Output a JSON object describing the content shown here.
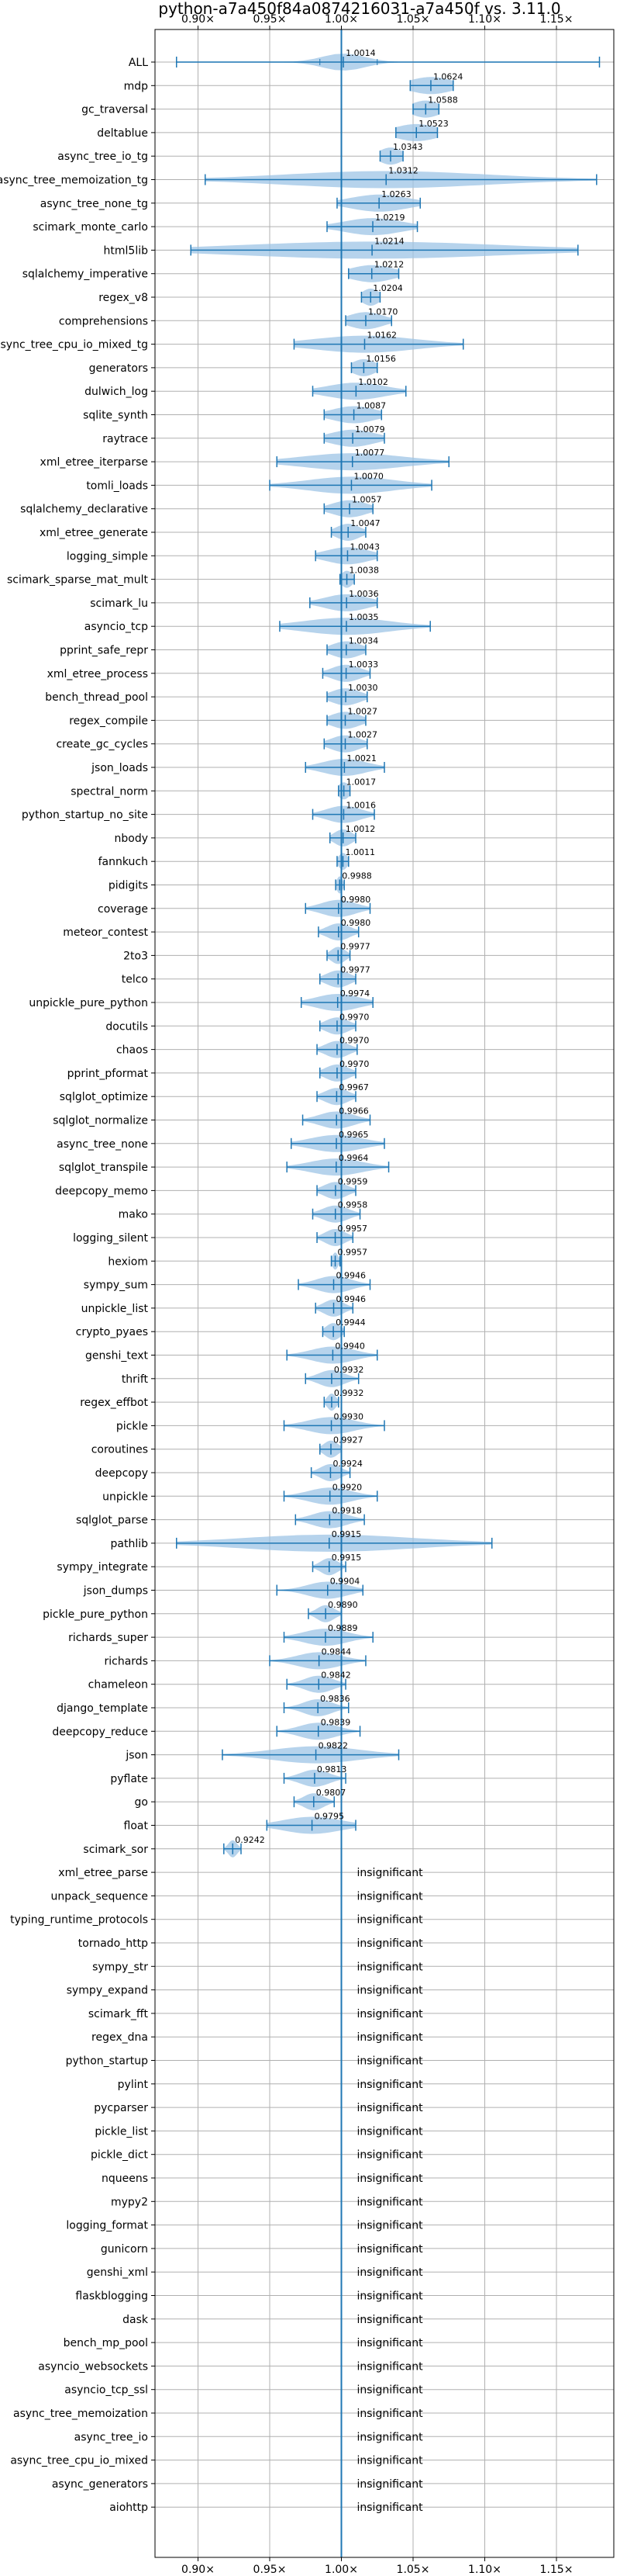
{
  "chart_data": {
    "type": "violin",
    "title": "python-a7a450f84a0874216031-a7a450f vs. 3.11.0",
    "xlim": [
      0.87,
      1.19
    ],
    "xticks": [
      {
        "value": 0.9,
        "label": "0.90×"
      },
      {
        "value": 0.95,
        "label": "0.95×"
      },
      {
        "value": 1.0,
        "label": "1.00×"
      },
      {
        "value": 1.05,
        "label": "1.05×"
      },
      {
        "value": 1.1,
        "label": "1.10×"
      },
      {
        "value": 1.15,
        "label": "1.15×"
      }
    ],
    "reference_line": 1.0,
    "grid": true,
    "insignificant_label": "insignificant",
    "benchmarks": [
      {
        "name": "ALL",
        "value": 1.0014,
        "label": "1.0014",
        "min": 0.885,
        "max": 1.18,
        "q1": 0.985,
        "q3": 1.025,
        "spread": 0.015
      },
      {
        "name": "mdp",
        "value": 1.0624,
        "label": "1.0624",
        "min": 1.048,
        "max": 1.078,
        "spread": 0.015
      },
      {
        "name": "gc_traversal",
        "value": 1.0588,
        "label": "1.0588",
        "min": 1.05,
        "max": 1.068,
        "spread": 0.01
      },
      {
        "name": "deltablue",
        "value": 1.0523,
        "label": "1.0523",
        "min": 1.038,
        "max": 1.067,
        "spread": 0.015
      },
      {
        "name": "async_tree_io_tg",
        "value": 1.0343,
        "label": "1.0343",
        "min": 1.027,
        "max": 1.043,
        "spread": 0.008
      },
      {
        "name": "async_tree_memoization_tg",
        "value": 1.0312,
        "label": "1.0312",
        "min": 0.905,
        "max": 1.178,
        "spread": 0.07
      },
      {
        "name": "async_tree_none_tg",
        "value": 1.0263,
        "label": "1.0263",
        "min": 0.997,
        "max": 1.055,
        "spread": 0.02
      },
      {
        "name": "scimark_monte_carlo",
        "value": 1.0219,
        "label": "1.0219",
        "min": 0.99,
        "max": 1.053,
        "spread": 0.02
      },
      {
        "name": "html5lib",
        "value": 1.0214,
        "label": "1.0214",
        "min": 0.895,
        "max": 1.165,
        "spread": 0.09
      },
      {
        "name": "sqlalchemy_imperative",
        "value": 1.0212,
        "label": "1.0212",
        "min": 1.005,
        "max": 1.04,
        "spread": 0.015
      },
      {
        "name": "regex_v8",
        "value": 1.0204,
        "label": "1.0204",
        "min": 1.014,
        "max": 1.027,
        "spread": 0.006
      },
      {
        "name": "comprehensions",
        "value": 1.017,
        "label": "1.0170",
        "min": 1.003,
        "max": 1.035,
        "spread": 0.012
      },
      {
        "name": "async_tree_cpu_io_mixed_tg",
        "value": 1.0162,
        "label": "1.0162",
        "min": 0.967,
        "max": 1.085,
        "spread": 0.035
      },
      {
        "name": "generators",
        "value": 1.0156,
        "label": "1.0156",
        "min": 1.007,
        "max": 1.025,
        "spread": 0.008
      },
      {
        "name": "dulwich_log",
        "value": 1.0102,
        "label": "1.0102",
        "min": 0.98,
        "max": 1.045,
        "spread": 0.02
      },
      {
        "name": "sqlite_synth",
        "value": 1.0087,
        "label": "1.0087",
        "min": 0.988,
        "max": 1.028,
        "spread": 0.015
      },
      {
        "name": "raytrace",
        "value": 1.0079,
        "label": "1.0079",
        "min": 0.988,
        "max": 1.03,
        "spread": 0.015
      },
      {
        "name": "xml_etree_iterparse",
        "value": 1.0077,
        "label": "1.0077",
        "min": 0.955,
        "max": 1.075,
        "spread": 0.035
      },
      {
        "name": "tomli_loads",
        "value": 1.007,
        "label": "1.0070",
        "min": 0.95,
        "max": 1.063,
        "spread": 0.03
      },
      {
        "name": "sqlalchemy_declarative",
        "value": 1.0057,
        "label": "1.0057",
        "min": 0.988,
        "max": 1.022,
        "spread": 0.012
      },
      {
        "name": "xml_etree_generate",
        "value": 1.0047,
        "label": "1.0047",
        "min": 0.993,
        "max": 1.017,
        "spread": 0.008
      },
      {
        "name": "logging_simple",
        "value": 1.0043,
        "label": "1.0043",
        "min": 0.982,
        "max": 1.025,
        "spread": 0.015
      },
      {
        "name": "scimark_sparse_mat_mult",
        "value": 1.0038,
        "label": "1.0038",
        "min": 0.999,
        "max": 1.009,
        "spread": 0.004
      },
      {
        "name": "scimark_lu",
        "value": 1.0036,
        "label": "1.0036",
        "min": 0.978,
        "max": 1.025,
        "spread": 0.015
      },
      {
        "name": "asyncio_tcp",
        "value": 1.0035,
        "label": "1.0035",
        "min": 0.957,
        "max": 1.062,
        "spread": 0.03
      },
      {
        "name": "pprint_safe_repr",
        "value": 1.0034,
        "label": "1.0034",
        "min": 0.99,
        "max": 1.017,
        "spread": 0.01
      },
      {
        "name": "xml_etree_process",
        "value": 1.0033,
        "label": "1.0033",
        "min": 0.987,
        "max": 1.02,
        "spread": 0.01
      },
      {
        "name": "bench_thread_pool",
        "value": 1.003,
        "label": "1.0030",
        "min": 0.99,
        "max": 1.018,
        "spread": 0.01
      },
      {
        "name": "regex_compile",
        "value": 1.0027,
        "label": "1.0027",
        "min": 0.99,
        "max": 1.017,
        "spread": 0.01
      },
      {
        "name": "create_gc_cycles",
        "value": 1.0027,
        "label": "1.0027",
        "min": 0.988,
        "max": 1.018,
        "spread": 0.01
      },
      {
        "name": "json_loads",
        "value": 1.0021,
        "label": "1.0021",
        "min": 0.975,
        "max": 1.03,
        "spread": 0.015
      },
      {
        "name": "spectral_norm",
        "value": 1.0017,
        "label": "1.0017",
        "min": 0.998,
        "max": 1.006,
        "spread": 0.004
      },
      {
        "name": "python_startup_no_site",
        "value": 1.0016,
        "label": "1.0016",
        "min": 0.98,
        "max": 1.023,
        "spread": 0.012
      },
      {
        "name": "nbody",
        "value": 1.0012,
        "label": "1.0012",
        "min": 0.992,
        "max": 1.01,
        "spread": 0.006
      },
      {
        "name": "fannkuch",
        "value": 1.0011,
        "label": "1.0011",
        "min": 0.997,
        "max": 1.005,
        "spread": 0.003
      },
      {
        "name": "pidigits",
        "value": 0.9988,
        "label": "0.9988",
        "min": 0.996,
        "max": 1.002,
        "spread": 0.002
      },
      {
        "name": "coverage",
        "value": 0.998,
        "label": "0.9980",
        "min": 0.975,
        "max": 1.02,
        "spread": 0.012
      },
      {
        "name": "meteor_contest",
        "value": 0.998,
        "label": "0.9980",
        "min": 0.984,
        "max": 1.012,
        "spread": 0.008
      },
      {
        "name": "2to3",
        "value": 0.9977,
        "label": "0.9977",
        "min": 0.99,
        "max": 1.006,
        "spread": 0.005
      },
      {
        "name": "telco",
        "value": 0.9977,
        "label": "0.9977",
        "min": 0.985,
        "max": 1.01,
        "spread": 0.008
      },
      {
        "name": "unpickle_pure_python",
        "value": 0.9974,
        "label": "0.9974",
        "min": 0.972,
        "max": 1.022,
        "spread": 0.015
      },
      {
        "name": "docutils",
        "value": 0.997,
        "label": "0.9970",
        "min": 0.985,
        "max": 1.01,
        "spread": 0.008
      },
      {
        "name": "chaos",
        "value": 0.997,
        "label": "0.9970",
        "min": 0.983,
        "max": 1.011,
        "spread": 0.008
      },
      {
        "name": "pprint_pformat",
        "value": 0.997,
        "label": "0.9970",
        "min": 0.985,
        "max": 1.01,
        "spread": 0.008
      },
      {
        "name": "sqlglot_optimize",
        "value": 0.9967,
        "label": "0.9967",
        "min": 0.983,
        "max": 1.01,
        "spread": 0.008
      },
      {
        "name": "sqlglot_normalize",
        "value": 0.9966,
        "label": "0.9966",
        "min": 0.973,
        "max": 1.02,
        "spread": 0.012
      },
      {
        "name": "async_tree_none",
        "value": 0.9965,
        "label": "0.9965",
        "min": 0.965,
        "max": 1.03,
        "spread": 0.018
      },
      {
        "name": "sqlglot_transpile",
        "value": 0.9964,
        "label": "0.9964",
        "min": 0.962,
        "max": 1.033,
        "spread": 0.018
      },
      {
        "name": "deepcopy_memo",
        "value": 0.9959,
        "label": "0.9959",
        "min": 0.983,
        "max": 1.01,
        "spread": 0.008
      },
      {
        "name": "mako",
        "value": 0.9958,
        "label": "0.9958",
        "min": 0.98,
        "max": 1.013,
        "spread": 0.009
      },
      {
        "name": "logging_silent",
        "value": 0.9957,
        "label": "0.9957",
        "min": 0.983,
        "max": 1.008,
        "spread": 0.007
      },
      {
        "name": "hexiom",
        "value": 0.9957,
        "label": "0.9957",
        "min": 0.993,
        "max": 0.999,
        "spread": 0.002
      },
      {
        "name": "sympy_sum",
        "value": 0.9946,
        "label": "0.9946",
        "min": 0.97,
        "max": 1.02,
        "spread": 0.012
      },
      {
        "name": "unpickle_list",
        "value": 0.9946,
        "label": "0.9946",
        "min": 0.982,
        "max": 1.008,
        "spread": 0.007
      },
      {
        "name": "crypto_pyaes",
        "value": 0.9944,
        "label": "0.9944",
        "min": 0.987,
        "max": 1.002,
        "spread": 0.005
      },
      {
        "name": "genshi_text",
        "value": 0.994,
        "label": "0.9940",
        "min": 0.962,
        "max": 1.025,
        "spread": 0.015
      },
      {
        "name": "thrift",
        "value": 0.9932,
        "label": "0.9932",
        "min": 0.975,
        "max": 1.012,
        "spread": 0.009
      },
      {
        "name": "regex_effbot",
        "value": 0.9932,
        "label": "0.9932",
        "min": 0.988,
        "max": 0.998,
        "spread": 0.003
      },
      {
        "name": "pickle",
        "value": 0.993,
        "label": "0.9930",
        "min": 0.96,
        "max": 1.03,
        "spread": 0.016
      },
      {
        "name": "coroutines",
        "value": 0.9927,
        "label": "0.9927",
        "min": 0.985,
        "max": 1.0,
        "spread": 0.005
      },
      {
        "name": "deepcopy",
        "value": 0.9924,
        "label": "0.9924",
        "min": 0.979,
        "max": 1.006,
        "spread": 0.007
      },
      {
        "name": "unpickle",
        "value": 0.992,
        "label": "0.9920",
        "min": 0.96,
        "max": 1.025,
        "spread": 0.015
      },
      {
        "name": "sqlglot_parse",
        "value": 0.9918,
        "label": "0.9918",
        "min": 0.968,
        "max": 1.016,
        "spread": 0.012
      },
      {
        "name": "pathlib",
        "value": 0.9915,
        "label": "0.9915",
        "min": 0.885,
        "max": 1.105,
        "spread": 0.06
      },
      {
        "name": "sympy_integrate",
        "value": 0.9915,
        "label": "0.9915",
        "min": 0.98,
        "max": 1.003,
        "spread": 0.006
      },
      {
        "name": "json_dumps",
        "value": 0.9904,
        "label": "0.9904",
        "min": 0.955,
        "max": 1.015,
        "spread": 0.014
      },
      {
        "name": "pickle_pure_python",
        "value": 0.989,
        "label": "0.9890",
        "min": 0.977,
        "max": 1.0,
        "spread": 0.006
      },
      {
        "name": "richards_super",
        "value": 0.9889,
        "label": "0.9889",
        "min": 0.96,
        "max": 1.022,
        "spread": 0.015
      },
      {
        "name": "richards",
        "value": 0.9844,
        "label": "0.9844",
        "min": 0.95,
        "max": 1.017,
        "spread": 0.015
      },
      {
        "name": "chameleon",
        "value": 0.9842,
        "label": "0.9842",
        "min": 0.962,
        "max": 1.003,
        "spread": 0.01
      },
      {
        "name": "django_template",
        "value": 0.9836,
        "label": "0.9836",
        "min": 0.96,
        "max": 1.005,
        "spread": 0.01
      },
      {
        "name": "deepcopy_reduce",
        "value": 0.9839,
        "label": "0.9839",
        "min": 0.955,
        "max": 1.013,
        "spread": 0.013
      },
      {
        "name": "json",
        "value": 0.9822,
        "label": "0.9822",
        "min": 0.917,
        "max": 1.04,
        "spread": 0.03
      },
      {
        "name": "pyflate",
        "value": 0.9813,
        "label": "0.9813",
        "min": 0.96,
        "max": 1.003,
        "spread": 0.01
      },
      {
        "name": "go",
        "value": 0.9807,
        "label": "0.9807",
        "min": 0.967,
        "max": 0.995,
        "spread": 0.007
      },
      {
        "name": "float",
        "value": 0.9795,
        "label": "0.9795",
        "min": 0.948,
        "max": 1.01,
        "spread": 0.02
      },
      {
        "name": "scimark_sor",
        "value": 0.9242,
        "label": "0.9242",
        "min": 0.918,
        "max": 0.93,
        "spread": 0.003
      },
      {
        "name": "xml_etree_parse",
        "insignificant": true
      },
      {
        "name": "unpack_sequence",
        "insignificant": true
      },
      {
        "name": "typing_runtime_protocols",
        "insignificant": true
      },
      {
        "name": "tornado_http",
        "insignificant": true
      },
      {
        "name": "sympy_str",
        "insignificant": true
      },
      {
        "name": "sympy_expand",
        "insignificant": true
      },
      {
        "name": "scimark_fft",
        "insignificant": true
      },
      {
        "name": "regex_dna",
        "insignificant": true
      },
      {
        "name": "python_startup",
        "insignificant": true
      },
      {
        "name": "pylint",
        "insignificant": true
      },
      {
        "name": "pycparser",
        "insignificant": true
      },
      {
        "name": "pickle_list",
        "insignificant": true
      },
      {
        "name": "pickle_dict",
        "insignificant": true
      },
      {
        "name": "nqueens",
        "insignificant": true
      },
      {
        "name": "mypy2",
        "insignificant": true
      },
      {
        "name": "logging_format",
        "insignificant": true
      },
      {
        "name": "gunicorn",
        "insignificant": true
      },
      {
        "name": "genshi_xml",
        "insignificant": true
      },
      {
        "name": "flaskblogging",
        "insignificant": true
      },
      {
        "name": "dask",
        "insignificant": true
      },
      {
        "name": "bench_mp_pool",
        "insignificant": true
      },
      {
        "name": "asyncio_websockets",
        "insignificant": true
      },
      {
        "name": "asyncio_tcp_ssl",
        "insignificant": true
      },
      {
        "name": "async_tree_memoization",
        "insignificant": true
      },
      {
        "name": "async_tree_io",
        "insignificant": true
      },
      {
        "name": "async_tree_cpu_io_mixed",
        "insignificant": true
      },
      {
        "name": "async_generators",
        "insignificant": true
      },
      {
        "name": "aiohttp",
        "insignificant": true
      }
    ],
    "colors": {
      "violin_fill": "#9ec4e6",
      "line": "#1f77b4",
      "grid": "#b0b0b0",
      "text": "#000000"
    }
  }
}
